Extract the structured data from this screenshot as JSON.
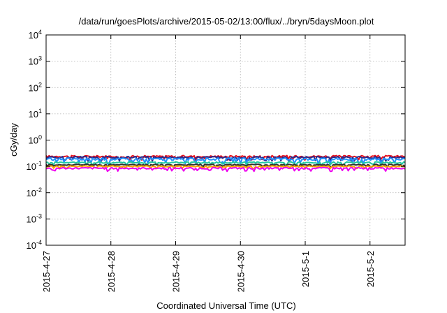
{
  "chart_data": {
    "type": "line",
    "title": "/data/run/goesPlots/archive/2015-05-02/13:00/flux/../bryn/5daysMoon.plot",
    "xlabel": "Coordinated Universal Time (UTC)",
    "ylabel": "cGy/day",
    "xlim": [
      "2015-04-27",
      "2015-05-02 13:00"
    ],
    "x_ticks": [
      "2015-4-27",
      "2015-4-28",
      "2015-4-29",
      "2015-4-30",
      "2015-5-1",
      "2015-5-2"
    ],
    "ylim": [
      0.0001,
      10000
    ],
    "yscale": "log",
    "y_ticks": [
      {
        "base": "10",
        "exp": "4"
      },
      {
        "base": "10",
        "exp": "3"
      },
      {
        "base": "10",
        "exp": "2"
      },
      {
        "base": "10",
        "exp": "1"
      },
      {
        "base": "10",
        "exp": "0"
      },
      {
        "base": "10",
        "exp": "-1"
      },
      {
        "base": "10",
        "exp": "-2"
      },
      {
        "base": "10",
        "exp": "-3"
      },
      {
        "base": "10",
        "exp": "-4"
      }
    ],
    "grid": true,
    "series": [
      {
        "color": "#e8101c",
        "level": 0.24,
        "noise": 0.16
      },
      {
        "color": "#2b2b8c",
        "level": 0.22,
        "noise": 0.16
      },
      {
        "color": "#1e90ff",
        "level": 0.19,
        "noise": 0.2
      },
      {
        "color": "#22c9a0",
        "level": 0.14,
        "noise": 0.12
      },
      {
        "color": "#303030",
        "level": 0.115,
        "noise": 0.1
      },
      {
        "color": "#ffa500",
        "level": 0.1,
        "noise": 0.1
      },
      {
        "color": "#ee00ee",
        "level": 0.085,
        "noise": 0.14
      }
    ]
  }
}
